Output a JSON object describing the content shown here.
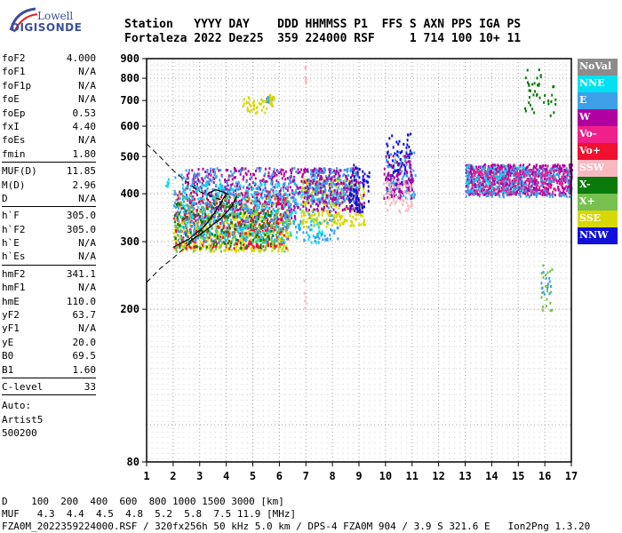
{
  "logo": {
    "line1": "Lowell",
    "line2": "DIGISONDE"
  },
  "header": {
    "line1": "Station   YYYY DAY    DDD HHMMSS P1  FFS S AXN PPS IGA PS",
    "line2": "Fortaleza 2022 Dez25  359 224000 RSF     1 714 100 10+ 11"
  },
  "params": [
    {
      "k": "foF2",
      "v": "4.000"
    },
    {
      "k": "foF1",
      "v": "N/A"
    },
    {
      "k": "foF1p",
      "v": "N/A"
    },
    {
      "k": "foE",
      "v": "N/A"
    },
    {
      "k": "foEp",
      "v": "0.53"
    },
    {
      "k": "fxI",
      "v": "4.40"
    },
    {
      "k": "foEs",
      "v": "N/A"
    },
    {
      "k": "fmin",
      "v": "1.80"
    },
    {
      "k": "MUF(D)",
      "v": "11.85"
    },
    {
      "k": "M(D)",
      "v": "2.96"
    },
    {
      "k": "D",
      "v": "N/A"
    },
    {
      "k": "h`F",
      "v": "305.0"
    },
    {
      "k": "h`F2",
      "v": "305.0"
    },
    {
      "k": "h`E",
      "v": "N/A"
    },
    {
      "k": "h`Es",
      "v": "N/A"
    },
    {
      "k": "hmF2",
      "v": "341.1"
    },
    {
      "k": "hmF1",
      "v": "N/A"
    },
    {
      "k": "hmE",
      "v": "110.0"
    },
    {
      "k": "yF2",
      "v": "63.7"
    },
    {
      "k": "yF1",
      "v": "N/A"
    },
    {
      "k": "yE",
      "v": "20.0"
    },
    {
      "k": "B0",
      "v": "69.5"
    },
    {
      "k": "B1",
      "v": "1.60"
    },
    {
      "k": "C-level",
      "v": "33"
    }
  ],
  "autoscale": {
    "l1": "Auto:",
    "l2": "Artist5",
    "l3": "500200"
  },
  "legend": [
    {
      "label": "NoVal",
      "color": "#8c8c8c"
    },
    {
      "label": "NNE",
      "color": "#00e0f0"
    },
    {
      "label": "E",
      "color": "#3ea0e8"
    },
    {
      "label": "W",
      "color": "#b000a0"
    },
    {
      "label": "Vo-",
      "color": "#f0208a"
    },
    {
      "label": "Vo+",
      "color": "#f01030"
    },
    {
      "label": "SSW",
      "color": "#f8b8c0"
    },
    {
      "label": "X-",
      "color": "#0a7a0a"
    },
    {
      "label": "X+",
      "color": "#78c050"
    },
    {
      "label": "SSE",
      "color": "#d8d800"
    },
    {
      "label": "NNW",
      "color": "#1010d8"
    }
  ],
  "footer": {
    "l1": "D    100  200  400  600  800 1000 1500 3000 [km]",
    "l2": "MUF   4.3  4.4  4.5  4.8  5.2  5.8  7.5 11.9 [MHz]",
    "l3": "FZA0M_2022359224000.RSF / 320fx256h 50 kHz 5.0 km / DPS-4 FZA0M 904 / 3.9 S 321.6 E   Ion2Png 1.3.20"
  },
  "chart_data": {
    "type": "scatter",
    "title": "",
    "xlabel": "",
    "ylabel": "",
    "xlim": [
      1,
      17
    ],
    "ylim": [
      80,
      900
    ],
    "yscale": "log",
    "xticks": [
      1,
      2,
      3,
      4,
      5,
      6,
      7,
      8,
      9,
      10,
      11,
      12,
      13,
      14,
      15,
      16,
      17
    ],
    "yticks": [
      80,
      200,
      300,
      400,
      500,
      600,
      700,
      800,
      900
    ],
    "grid": true,
    "legend_position": "right",
    "clusters": [
      {
        "name": "SSE",
        "x": [
          2.0,
          6.4
        ],
        "y": [
          285,
          360
        ],
        "n": 500
      },
      {
        "name": "Vo+",
        "x": [
          2.0,
          6.3
        ],
        "y": [
          290,
          410
        ],
        "n": 420
      },
      {
        "name": "W",
        "x": [
          2.4,
          6.6
        ],
        "y": [
          340,
          470
        ],
        "n": 420
      },
      {
        "name": "NNE",
        "x": [
          2.2,
          7.6
        ],
        "y": [
          300,
          430
        ],
        "n": 380
      },
      {
        "name": "E",
        "x": [
          2.0,
          8.2
        ],
        "y": [
          300,
          470
        ],
        "n": 520
      },
      {
        "name": "X+",
        "x": [
          2.0,
          6.4
        ],
        "y": [
          285,
          400
        ],
        "n": 180
      },
      {
        "name": "X-",
        "x": [
          2.0,
          5.8
        ],
        "y": [
          290,
          380
        ],
        "n": 120
      },
      {
        "name": "SSE",
        "x": [
          6.8,
          9.2
        ],
        "y": [
          330,
          440
        ],
        "n": 260
      },
      {
        "name": "E",
        "x": [
          7.0,
          9.0
        ],
        "y": [
          380,
          470
        ],
        "n": 260
      },
      {
        "name": "W",
        "x": [
          6.6,
          9.2
        ],
        "y": [
          360,
          470
        ],
        "n": 200
      },
      {
        "name": "NNW",
        "x": [
          8.6,
          9.4
        ],
        "y": [
          360,
          480
        ],
        "n": 70
      },
      {
        "name": "E",
        "x": [
          10.0,
          11.1
        ],
        "y": [
          390,
          520
        ],
        "n": 110
      },
      {
        "name": "NNW",
        "x": [
          10.0,
          11.0
        ],
        "y": [
          420,
          580
        ],
        "n": 70
      },
      {
        "name": "W",
        "x": [
          9.9,
          11.0
        ],
        "y": [
          390,
          510
        ],
        "n": 90
      },
      {
        "name": "SSW",
        "x": [
          9.9,
          11.0
        ],
        "y": [
          360,
          440
        ],
        "n": 60
      },
      {
        "name": "W",
        "x": [
          13.0,
          17.0
        ],
        "y": [
          400,
          480
        ],
        "n": 720
      },
      {
        "name": "E",
        "x": [
          13.0,
          17.0
        ],
        "y": [
          395,
          470
        ],
        "n": 260
      },
      {
        "name": "NNE",
        "x": [
          13.0,
          15.2
        ],
        "y": [
          405,
          480
        ],
        "n": 100
      },
      {
        "name": "Vo-",
        "x": [
          13.2,
          16.8
        ],
        "y": [
          400,
          470
        ],
        "n": 140
      },
      {
        "name": "SSE",
        "x": [
          4.6,
          5.5
        ],
        "y": [
          650,
          720
        ],
        "n": 40
      },
      {
        "name": "E",
        "x": [
          5.5,
          5.7
        ],
        "y": [
          690,
          720
        ],
        "n": 16
      },
      {
        "name": "SSE",
        "x": [
          5.6,
          5.8
        ],
        "y": [
          680,
          730
        ],
        "n": 20
      },
      {
        "name": "X-",
        "x": [
          15.2,
          16.4
        ],
        "y": [
          630,
          850
        ],
        "n": 40
      },
      {
        "name": "X+",
        "x": [
          15.8,
          16.3
        ],
        "y": [
          200,
          270
        ],
        "n": 22
      },
      {
        "name": "E",
        "x": [
          15.8,
          16.2
        ],
        "y": [
          220,
          260
        ],
        "n": 12
      },
      {
        "name": "SSW",
        "x": [
          6.9,
          7.0
        ],
        "y": [
          780,
          880
        ],
        "n": 10
      },
      {
        "name": "SSW",
        "x": [
          6.9,
          7.0
        ],
        "y": [
          200,
          260
        ],
        "n": 6
      },
      {
        "name": "NNE",
        "x": [
          1.7,
          1.85
        ],
        "y": [
          420,
          440
        ],
        "n": 6
      }
    ]
  }
}
